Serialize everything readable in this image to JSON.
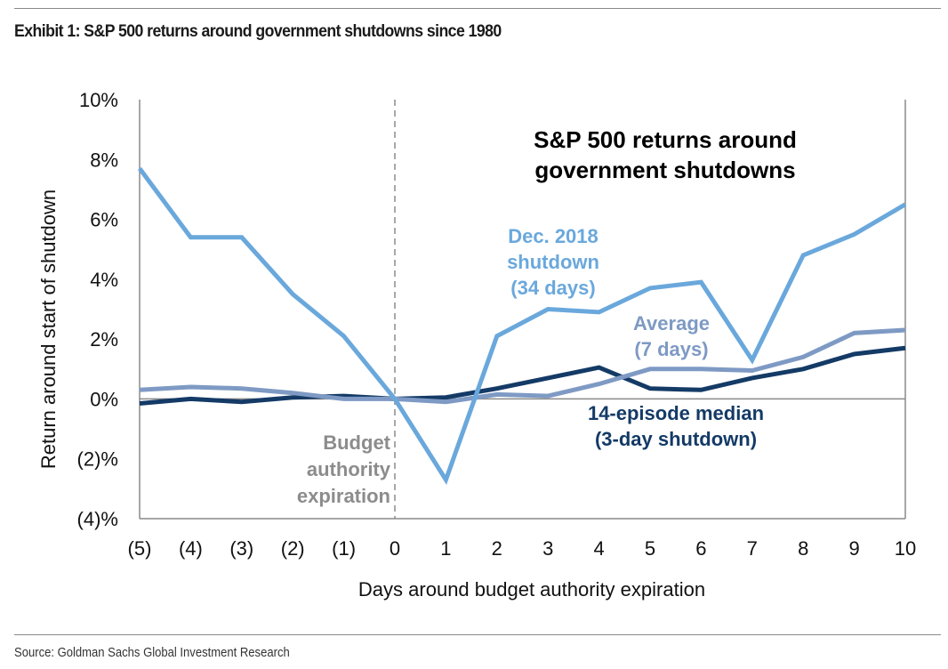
{
  "page": {
    "exhibit_title": "Exhibit 1: S&P 500 returns around government shutdowns since 1980",
    "source": "Source: Goldman Sachs Global Investment Research"
  },
  "chart_data": {
    "type": "line",
    "title": "S&P 500 returns around government shutdowns",
    "title_lines": [
      "S&P 500 returns around",
      "government shutdowns"
    ],
    "xlabel": "Days around budget authority expiration",
    "ylabel": "Return around start of shutdown",
    "x": [
      -5,
      -4,
      -3,
      -2,
      -1,
      0,
      1,
      2,
      3,
      4,
      5,
      6,
      7,
      8,
      9,
      10
    ],
    "x_tick_labels": [
      "(5)",
      "(4)",
      "(3)",
      "(2)",
      "(1)",
      "0",
      "1",
      "2",
      "3",
      "4",
      "5",
      "6",
      "7",
      "8",
      "9",
      "10"
    ],
    "ylim": [
      -4,
      10
    ],
    "y_ticks": [
      10,
      8,
      6,
      4,
      2,
      0,
      -2,
      -4
    ],
    "y_tick_labels": [
      "10%",
      "8%",
      "6%",
      "4%",
      "2%",
      "0%",
      "(2)%",
      "(4)%"
    ],
    "grid": false,
    "reference_line": {
      "x": 0,
      "style": "dashed",
      "label_lines": [
        "Budget",
        "authority",
        "expiration"
      ],
      "color": "#8c8c8c"
    },
    "series": [
      {
        "name": "Dec. 2018 shutdown (34 days)",
        "label_lines": [
          "Dec. 2018",
          "shutdown",
          "(34 days)"
        ],
        "color": "#6aa8dc",
        "values": [
          7.7,
          5.4,
          5.4,
          3.5,
          2.1,
          0.0,
          -2.7,
          2.1,
          3.0,
          2.9,
          3.7,
          3.9,
          1.3,
          4.8,
          5.5,
          6.5
        ]
      },
      {
        "name": "Average (7 days)",
        "label_lines": [
          "Average",
          "(7 days)"
        ],
        "color": "#7e9ac4",
        "values": [
          0.3,
          0.4,
          0.35,
          0.2,
          0.0,
          0.0,
          -0.1,
          0.15,
          0.1,
          0.5,
          1.0,
          1.0,
          0.95,
          1.4,
          2.2,
          2.3
        ]
      },
      {
        "name": "14-episode median (3-day shutdown)",
        "label_lines": [
          "14-episode median",
          "(3-day shutdown)"
        ],
        "color": "#143a66",
        "values": [
          -0.15,
          0.0,
          -0.1,
          0.05,
          0.1,
          0.0,
          0.05,
          0.35,
          0.7,
          1.05,
          0.35,
          0.3,
          0.7,
          1.0,
          1.5,
          1.7
        ]
      }
    ]
  }
}
